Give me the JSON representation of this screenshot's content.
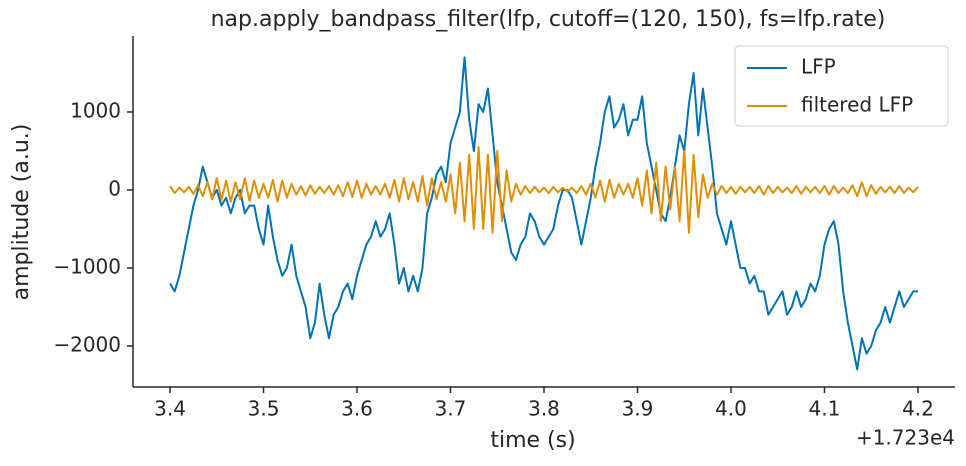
{
  "chart_data": {
    "type": "line",
    "title": "nap.apply_bandpass_filter(lfp, cutoff=(120, 150), fs=lfp.rate)",
    "xlabel": "time (s)",
    "ylabel": "amplitude (a.u.)",
    "x_offset_label": "+1.723e4",
    "legend": "upper right",
    "xlim": [
      17233.3604,
      17234.2396
    ],
    "ylim": [
      -2526,
      1974
    ],
    "xticks": [
      {
        "value": 17233.4,
        "label": "3.4"
      },
      {
        "value": 17233.5,
        "label": "3.5"
      },
      {
        "value": 17233.6,
        "label": "3.6"
      },
      {
        "value": 17233.7,
        "label": "3.7"
      },
      {
        "value": 17233.8,
        "label": "3.8"
      },
      {
        "value": 17233.9,
        "label": "3.9"
      },
      {
        "value": 17234.0,
        "label": "4.0"
      },
      {
        "value": 17234.1,
        "label": "4.1"
      },
      {
        "value": 17234.2,
        "label": "4.2"
      }
    ],
    "yticks": [
      {
        "value": -2000,
        "label": "−2000"
      },
      {
        "value": -1000,
        "label": "−1000"
      },
      0,
      1000
    ],
    "x": [
      17233.4,
      17233.405,
      17233.41,
      17233.415,
      17233.42,
      17233.425,
      17233.43,
      17233.435,
      17233.44,
      17233.445,
      17233.45,
      17233.455,
      17233.46,
      17233.465,
      17233.47,
      17233.475,
      17233.48,
      17233.485,
      17233.49,
      17233.495,
      17233.5,
      17233.505,
      17233.51,
      17233.515,
      17233.52,
      17233.525,
      17233.53,
      17233.535,
      17233.54,
      17233.545,
      17233.55,
      17233.555,
      17233.56,
      17233.565,
      17233.57,
      17233.575,
      17233.58,
      17233.585,
      17233.59,
      17233.595,
      17233.6,
      17233.605,
      17233.61,
      17233.615,
      17233.62,
      17233.625,
      17233.63,
      17233.635,
      17233.64,
      17233.645,
      17233.65,
      17233.655,
      17233.66,
      17233.665,
      17233.67,
      17233.675,
      17233.68,
      17233.685,
      17233.69,
      17233.695,
      17233.7,
      17233.705,
      17233.71,
      17233.715,
      17233.72,
      17233.725,
      17233.73,
      17233.735,
      17233.74,
      17233.745,
      17233.75,
      17233.755,
      17233.76,
      17233.765,
      17233.77,
      17233.775,
      17233.78,
      17233.785,
      17233.79,
      17233.795,
      17233.8,
      17233.805,
      17233.81,
      17233.815,
      17233.82,
      17233.825,
      17233.83,
      17233.835,
      17233.84,
      17233.845,
      17233.85,
      17233.855,
      17233.86,
      17233.865,
      17233.87,
      17233.875,
      17233.88,
      17233.885,
      17233.89,
      17233.895,
      17233.9,
      17233.905,
      17233.91,
      17233.915,
      17233.92,
      17233.925,
      17233.93,
      17233.935,
      17233.94,
      17233.945,
      17233.95,
      17233.955,
      17233.96,
      17233.965,
      17233.97,
      17233.975,
      17233.98,
      17233.985,
      17233.99,
      17233.995,
      17234.0,
      17234.005,
      17234.01,
      17234.015,
      17234.02,
      17234.025,
      17234.03,
      17234.035,
      17234.04,
      17234.045,
      17234.05,
      17234.055,
      17234.06,
      17234.065,
      17234.07,
      17234.075,
      17234.08,
      17234.085,
      17234.09,
      17234.095,
      17234.1,
      17234.105,
      17234.11,
      17234.115,
      17234.12,
      17234.125,
      17234.13,
      17234.135,
      17234.14,
      17234.145,
      17234.15,
      17234.155,
      17234.16,
      17234.165,
      17234.17,
      17234.175,
      17234.18,
      17234.185,
      17234.19,
      17234.195,
      17234.2
    ],
    "series": [
      {
        "name": "LFP",
        "color": "#0173b2",
        "values": [
          -1200,
          -1300,
          -1100,
          -800,
          -500,
          -200,
          0,
          300,
          100,
          -100,
          0,
          -200,
          -100,
          -300,
          -100,
          0,
          -300,
          -200,
          -200,
          -500,
          -700,
          -200,
          -600,
          -900,
          -1100,
          -1000,
          -700,
          -1100,
          -1300,
          -1500,
          -1900,
          -1700,
          -1200,
          -1600,
          -1900,
          -1600,
          -1500,
          -1300,
          -1200,
          -1400,
          -1100,
          -900,
          -700,
          -600,
          -400,
          -600,
          -500,
          -300,
          -700,
          -1200,
          -1000,
          -1300,
          -1100,
          -1300,
          -1000,
          -300,
          -100,
          200,
          300,
          100,
          600,
          800,
          1000,
          1700,
          900,
          500,
          1100,
          1000,
          1300,
          700,
          100,
          -200,
          -500,
          -800,
          -900,
          -700,
          -600,
          -300,
          -400,
          -600,
          -700,
          -600,
          -500,
          -200,
          0,
          0,
          -100,
          -400,
          -700,
          -400,
          -100,
          300,
          600,
          1000,
          1200,
          800,
          900,
          1100,
          700,
          900,
          900,
          1200,
          600,
          300,
          0,
          -300,
          -400,
          -100,
          300,
          700,
          500,
          1100,
          1500,
          700,
          1300,
          800,
          300,
          -300,
          -500,
          -700,
          -400,
          -700,
          -1000,
          -1000,
          -1200,
          -1100,
          -1300,
          -1300,
          -1600,
          -1500,
          -1400,
          -1300,
          -1600,
          -1500,
          -1300,
          -1500,
          -1400,
          -1200,
          -1300,
          -1100,
          -700,
          -500,
          -400,
          -700,
          -1300,
          -1700,
          -2000,
          -2300,
          -1900,
          -2100,
          -2000,
          -1800,
          -1700,
          -1500,
          -1700,
          -1500,
          -1300,
          -1500,
          -1400,
          -1300,
          -1300
        ]
      },
      {
        "name": "filtered LFP",
        "color": "#de8f05",
        "values": [
          50,
          -40,
          30,
          -30,
          40,
          -50,
          60,
          -80,
          100,
          -120,
          150,
          -130,
          120,
          -150,
          100,
          -120,
          150,
          -140,
          120,
          -100,
          80,
          -100,
          130,
          -150,
          120,
          -100,
          80,
          -60,
          50,
          -70,
          60,
          -50,
          40,
          -40,
          50,
          -60,
          60,
          -80,
          100,
          -90,
          120,
          -100,
          80,
          -60,
          50,
          -60,
          80,
          -100,
          130,
          -150,
          150,
          -120,
          100,
          -150,
          180,
          -200,
          150,
          -120,
          100,
          -150,
          200,
          -300,
          350,
          -400,
          450,
          -500,
          550,
          -500,
          450,
          -550,
          500,
          -400,
          250,
          -150,
          80,
          -60,
          50,
          -40,
          40,
          -30,
          30,
          -40,
          40,
          -30,
          30,
          -20,
          30,
          -40,
          50,
          -60,
          80,
          -100,
          120,
          -150,
          130,
          -100,
          80,
          -60,
          80,
          -100,
          150,
          -200,
          250,
          -300,
          350,
          -400,
          300,
          -250,
          300,
          -400,
          500,
          -550,
          450,
          -350,
          200,
          -100,
          80,
          -60,
          50,
          -40,
          40,
          -50,
          40,
          -30,
          40,
          -40,
          50,
          -60,
          50,
          -40,
          40,
          -30,
          30,
          -40,
          50,
          -50,
          40,
          -30,
          40,
          -40,
          50,
          -60,
          50,
          -40,
          30,
          -40,
          60,
          -80,
          100,
          -80,
          60,
          -50,
          40,
          -30,
          40,
          -40,
          50,
          -40,
          30,
          -30,
          40
        ]
      }
    ]
  }
}
